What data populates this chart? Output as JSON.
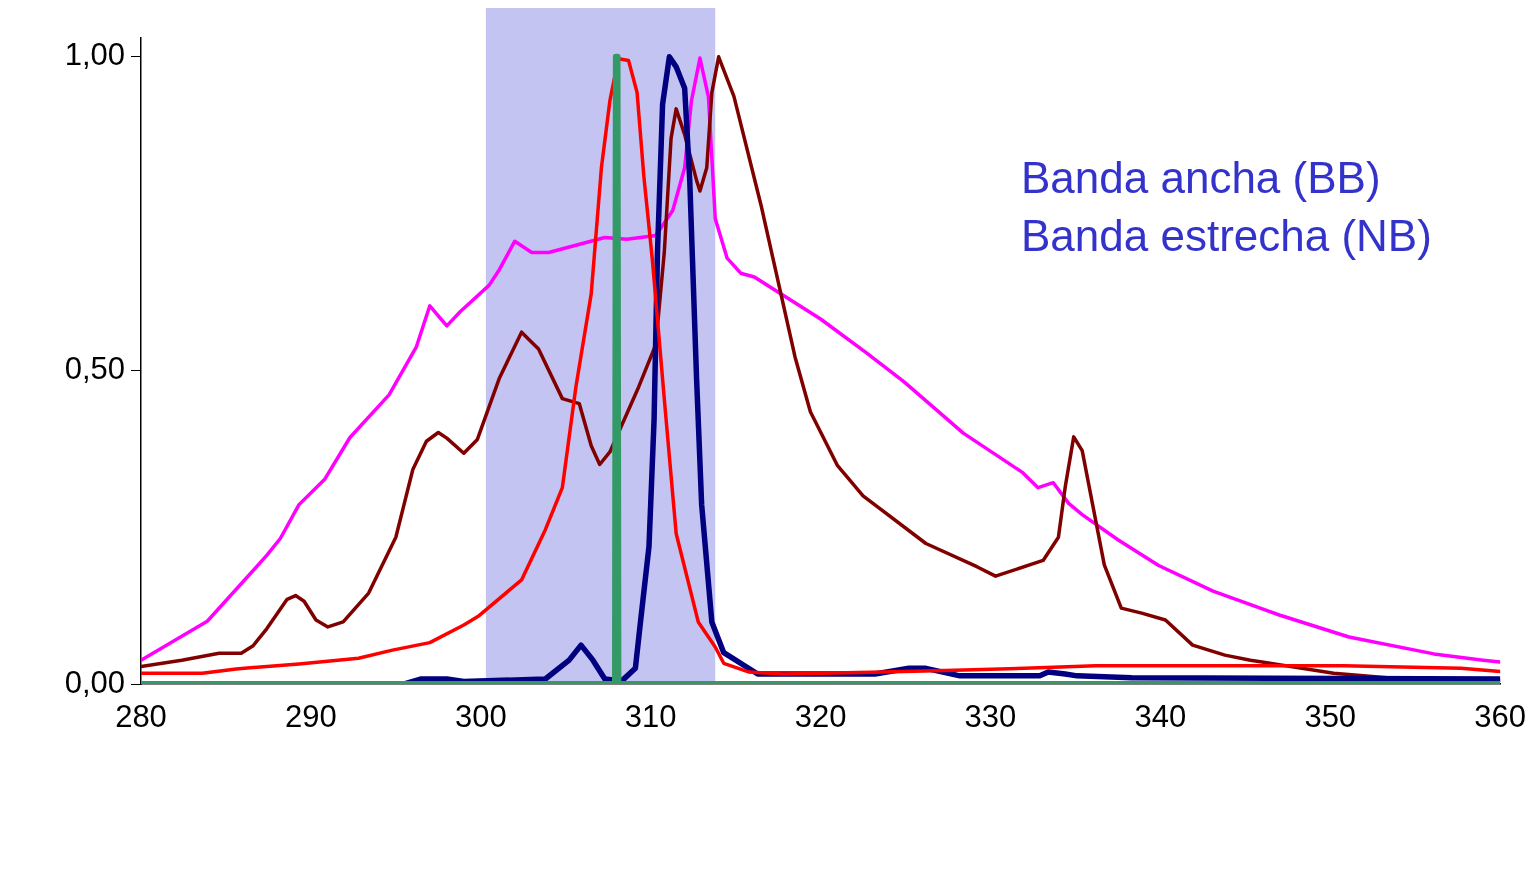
{
  "chart_data": {
    "type": "line",
    "xlim": [
      280,
      360
    ],
    "ylim": [
      0,
      1.03
    ],
    "xticks": [
      280,
      290,
      300,
      310,
      320,
      330,
      340,
      350,
      360
    ],
    "yticks": [
      {
        "value": 0,
        "label": "0,00"
      },
      {
        "value": 0.5,
        "label": "0,50"
      },
      {
        "value": 1,
        "label": "1,00"
      }
    ],
    "grid": false,
    "legend": false,
    "marker": "none",
    "line_style": "solid",
    "bands": [
      {
        "axis": "x",
        "from": 300.3,
        "to": 313.8,
        "color": "#c4c4f2"
      }
    ],
    "annotations": [
      "Banda ancha (BB)",
      "Banda estrecha (NB)"
    ],
    "series": [
      {
        "color": "#ff00ff",
        "x": [
          280,
          283.9,
          287.4,
          288.2,
          289.3,
          290.8,
          292.3,
          294.6,
          296.2,
          297.0,
          298.0,
          298.8,
          300.5,
          301.1,
          302.0,
          303.0,
          304.0,
          307.3,
          308.6,
          310.3,
          311.3,
          312.0,
          312.4,
          312.9,
          313.4,
          313.8,
          314.5,
          315.3,
          316.1,
          320.0,
          322.7,
          324.9,
          328.4,
          331.9,
          332.8,
          333.7,
          334.6,
          335.4,
          337.5,
          339.9,
          343.1,
          347.0,
          351.1,
          356.1,
          359.0,
          360
        ],
        "values": [
          0.038,
          0.1,
          0.205,
          0.232,
          0.286,
          0.326,
          0.393,
          0.461,
          0.537,
          0.603,
          0.571,
          0.594,
          0.636,
          0.661,
          0.706,
          0.688,
          0.688,
          0.712,
          0.709,
          0.715,
          0.755,
          0.823,
          0.93,
          0.998,
          0.936,
          0.742,
          0.679,
          0.655,
          0.649,
          0.582,
          0.528,
          0.482,
          0.4,
          0.337,
          0.313,
          0.321,
          0.288,
          0.27,
          0.23,
          0.189,
          0.148,
          0.11,
          0.075,
          0.048,
          0.038,
          0.035
        ]
      },
      {
        "color": "#800000",
        "x": [
          280,
          282.4,
          284.6,
          285.9,
          286.6,
          287.4,
          288.6,
          289.1,
          289.6,
          290.3,
          291.0,
          291.9,
          293.4,
          295.0,
          296.0,
          296.8,
          297.5,
          298.0,
          299.0,
          299.8,
          301.1,
          302.4,
          303.4,
          304.8,
          305.8,
          306.5,
          307.0,
          307.6,
          309.3,
          310.3,
          310.8,
          311.2,
          311.5,
          312.0,
          312.7,
          312.9,
          313.3,
          313.6,
          314.0,
          314.9,
          316.5,
          318.5,
          319.4,
          321.0,
          322.5,
          326.2,
          329.2,
          330.3,
          333.1,
          334.0,
          334.4,
          334.9,
          335.4,
          336.7,
          337.7,
          338.9,
          340.3,
          341.9,
          343.8,
          345.3,
          350.2,
          355.1,
          360
        ],
        "values": [
          0.028,
          0.038,
          0.049,
          0.049,
          0.061,
          0.088,
          0.135,
          0.141,
          0.132,
          0.102,
          0.091,
          0.099,
          0.145,
          0.234,
          0.342,
          0.387,
          0.401,
          0.392,
          0.368,
          0.39,
          0.488,
          0.561,
          0.534,
          0.455,
          0.447,
          0.38,
          0.35,
          0.37,
          0.474,
          0.541,
          0.688,
          0.87,
          0.917,
          0.876,
          0.803,
          0.786,
          0.823,
          0.943,
          1.0,
          0.937,
          0.763,
          0.521,
          0.434,
          0.348,
          0.3,
          0.224,
          0.187,
          0.172,
          0.197,
          0.234,
          0.314,
          0.394,
          0.372,
          0.19,
          0.121,
          0.113,
          0.102,
          0.062,
          0.046,
          0.038,
          0.017,
          0.006,
          0.006
        ]
      },
      {
        "color": "#ff0000",
        "x": [
          280,
          283.6,
          285.6,
          289.3,
          292.8,
          294.8,
          297.0,
          299.0,
          299.9,
          302.4,
          303.8,
          304.8,
          305.6,
          306.5,
          307.1,
          307.6,
          308.1,
          308.7,
          309.2,
          309.6,
          310.1,
          310.8,
          311.5,
          312.8,
          313.8,
          314.3,
          315.8,
          317.8,
          323.7,
          327.9,
          332.0,
          336.2,
          350.8,
          357.7,
          360
        ],
        "values": [
          0.017,
          0.017,
          0.024,
          0.032,
          0.041,
          0.054,
          0.066,
          0.094,
          0.109,
          0.166,
          0.246,
          0.313,
          0.474,
          0.622,
          0.823,
          0.93,
          0.997,
          0.994,
          0.943,
          0.809,
          0.676,
          0.455,
          0.24,
          0.099,
          0.059,
          0.033,
          0.019,
          0.016,
          0.019,
          0.022,
          0.025,
          0.029,
          0.029,
          0.025,
          0.02
        ]
      },
      {
        "color": "#000080",
        "x": [
          280,
          295.5,
          296.5,
          298.0,
          299.0,
          303.8,
          305.2,
          305.9,
          306.6,
          307.3,
          308.3,
          309.1,
          309.4,
          309.9,
          310.2,
          310.4,
          310.7,
          311.1,
          311.5,
          312.0,
          312.3,
          312.7,
          313.0,
          313.6,
          314.3,
          316.3,
          323.2,
          325.2,
          326.2,
          328.2,
          332.9,
          333.4,
          334.4,
          335.1,
          338.3,
          360
        ],
        "values": [
          0,
          0,
          0.008,
          0.008,
          0.004,
          0.008,
          0.038,
          0.062,
          0.038,
          0.008,
          0.005,
          0.025,
          0.099,
          0.219,
          0.421,
          0.688,
          0.924,
          1.0,
          0.984,
          0.95,
          0.803,
          0.488,
          0.286,
          0.099,
          0.05,
          0.016,
          0.016,
          0.025,
          0.025,
          0.013,
          0.013,
          0.019,
          0.016,
          0.013,
          0.01,
          0.008
        ]
      },
      {
        "color": "#339966",
        "x": [
          280,
          307.9,
          307.95,
          308.05,
          308.1,
          360
        ],
        "values": [
          0,
          0,
          1,
          1,
          0,
          0
        ]
      }
    ]
  }
}
